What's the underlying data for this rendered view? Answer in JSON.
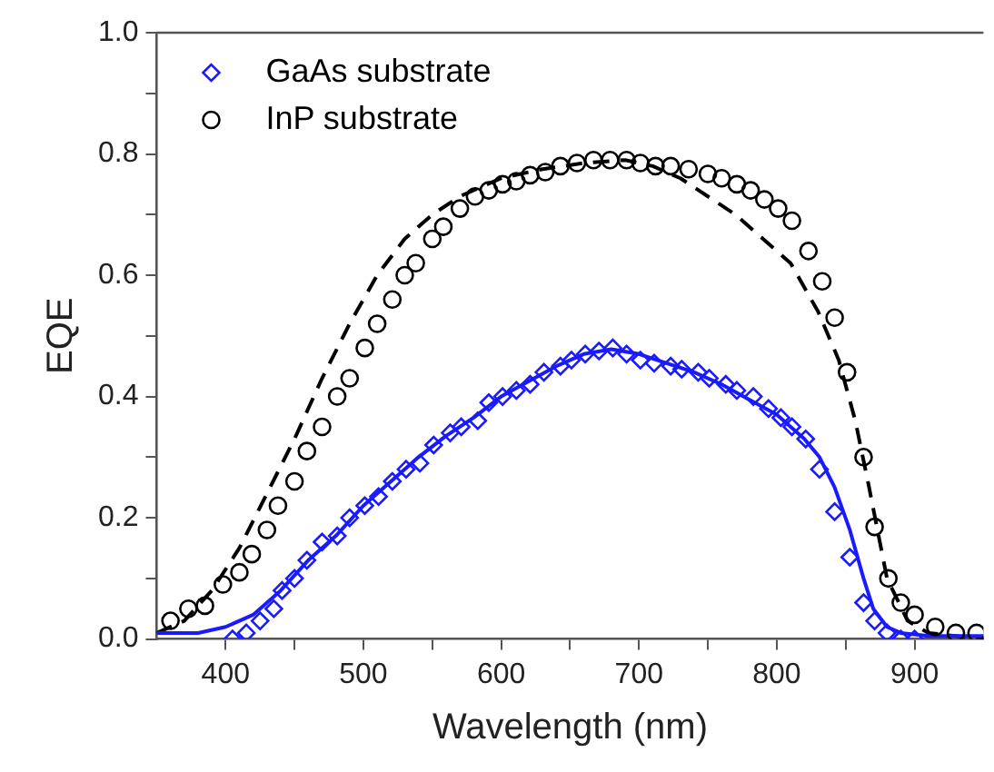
{
  "chart_data": {
    "type": "scatter",
    "xlabel": "Wavelength (nm)",
    "ylabel": "EQE",
    "xlim": [
      350,
      950
    ],
    "ylim": [
      0,
      1.0
    ],
    "xticks": [
      400,
      {
        "value": 450,
        "label": null
      },
      500,
      {
        "value": 550,
        "label": null
      },
      600,
      {
        "value": 650,
        "label": null
      },
      700,
      {
        "value": 750,
        "label": null
      },
      800,
      {
        "value": 850,
        "label": null
      },
      900
    ],
    "yticks": [
      {
        "value": 0,
        "label": "0.0"
      },
      {
        "value": 0.1,
        "label": null
      },
      {
        "value": 0.2,
        "label": "0.2"
      },
      {
        "value": 0.3,
        "label": null
      },
      {
        "value": 0.4,
        "label": "0.4"
      },
      {
        "value": 0.5,
        "label": null
      },
      {
        "value": 0.6,
        "label": "0.6"
      },
      {
        "value": 0.7,
        "label": null
      },
      {
        "value": 0.8,
        "label": "0.8"
      },
      {
        "value": 0.9,
        "label": null
      },
      {
        "value": 1.0,
        "label": "1.0"
      }
    ],
    "grid": false,
    "legend": "top left",
    "series": [
      {
        "name": "GaAs substrate",
        "type": "scatter",
        "marker": "diamond",
        "color": "#1a1aff",
        "x": [
          405,
          415,
          425,
          435,
          441,
          450,
          459,
          470,
          481,
          490,
          501,
          511,
          521,
          531,
          541,
          551,
          563,
          571,
          583,
          591,
          601,
          611,
          621,
          631,
          643,
          651,
          661,
          671,
          681,
          691,
          701,
          711,
          723,
          731,
          743,
          751,
          763,
          771,
          783,
          794,
          803,
          811,
          821,
          831,
          842,
          853,
          863,
          871,
          880,
          890,
          900
        ],
        "values": [
          0.0,
          0.01,
          0.03,
          0.05,
          0.08,
          0.1,
          0.13,
          0.16,
          0.17,
          0.2,
          0.22,
          0.235,
          0.26,
          0.28,
          0.29,
          0.32,
          0.34,
          0.35,
          0.36,
          0.39,
          0.4,
          0.41,
          0.42,
          0.44,
          0.45,
          0.46,
          0.47,
          0.475,
          0.48,
          0.47,
          0.46,
          0.455,
          0.45,
          0.445,
          0.44,
          0.43,
          0.42,
          0.41,
          0.4,
          0.38,
          0.365,
          0.35,
          0.33,
          0.28,
          0.21,
          0.135,
          0.06,
          0.03,
          0.01,
          0.0,
          0.0
        ]
      },
      {
        "name": "InP substrate",
        "type": "scatter",
        "marker": "circle",
        "color": "#000000",
        "x": [
          360,
          373,
          385,
          398,
          410,
          419,
          430,
          438,
          450,
          459,
          470,
          481,
          490,
          501,
          510,
          521,
          530,
          538,
          550,
          558,
          570,
          581,
          591,
          601,
          611,
          621,
          632,
          643,
          655,
          667,
          679,
          691,
          701,
          712,
          723,
          736,
          750,
          760,
          771,
          781,
          791,
          801,
          811,
          823,
          833,
          842,
          851,
          863,
          871,
          881,
          890,
          900,
          915,
          930,
          945
        ],
        "values": [
          0.03,
          0.05,
          0.055,
          0.09,
          0.11,
          0.14,
          0.18,
          0.22,
          0.26,
          0.31,
          0.35,
          0.4,
          0.43,
          0.48,
          0.52,
          0.56,
          0.6,
          0.62,
          0.66,
          0.68,
          0.71,
          0.73,
          0.74,
          0.75,
          0.755,
          0.765,
          0.77,
          0.78,
          0.785,
          0.79,
          0.79,
          0.79,
          0.785,
          0.78,
          0.78,
          0.775,
          0.767,
          0.76,
          0.75,
          0.74,
          0.725,
          0.71,
          0.69,
          0.64,
          0.59,
          0.53,
          0.44,
          0.3,
          0.185,
          0.1,
          0.06,
          0.04,
          0.02,
          0.01,
          0.01
        ]
      },
      {
        "type": "line",
        "line_style": "solid",
        "color": "#1a1aff",
        "x": [
          350,
          380,
          400,
          420,
          440,
          460,
          480,
          500,
          520,
          540,
          560,
          580,
          600,
          620,
          640,
          660,
          680,
          700,
          720,
          740,
          760,
          780,
          800,
          820,
          831,
          842,
          853,
          863,
          870,
          880,
          890,
          910,
          950
        ],
        "values": [
          0.01,
          0.01,
          0.02,
          0.04,
          0.08,
          0.13,
          0.17,
          0.22,
          0.26,
          0.3,
          0.335,
          0.365,
          0.4,
          0.425,
          0.45,
          0.47,
          0.478,
          0.47,
          0.455,
          0.44,
          0.42,
          0.395,
          0.37,
          0.33,
          0.3,
          0.25,
          0.18,
          0.1,
          0.05,
          0.02,
          0.01,
          0.005,
          0.005
        ]
      },
      {
        "type": "line",
        "line_style": "dashed",
        "color": "#000000",
        "x": [
          350,
          370,
          390,
          410,
          430,
          450,
          470,
          490,
          510,
          530,
          550,
          570,
          600,
          630,
          660,
          690,
          710,
          730,
          750,
          770,
          790,
          810,
          830,
          845,
          857,
          867,
          880,
          895,
          910,
          950
        ],
        "values": [
          0.01,
          0.03,
          0.08,
          0.15,
          0.24,
          0.33,
          0.43,
          0.52,
          0.6,
          0.66,
          0.7,
          0.73,
          0.76,
          0.775,
          0.785,
          0.79,
          0.78,
          0.76,
          0.73,
          0.7,
          0.66,
          0.62,
          0.54,
          0.46,
          0.36,
          0.25,
          0.1,
          0.03,
          0.01,
          0.0
        ]
      }
    ]
  }
}
